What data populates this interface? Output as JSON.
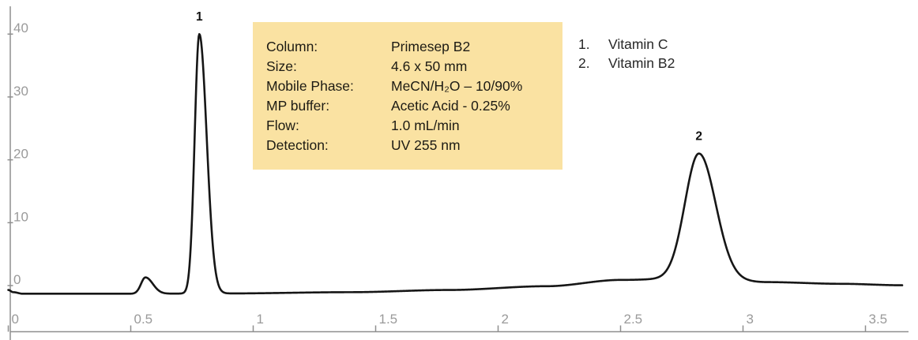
{
  "info_box": {
    "background_color": "#FAE2A2",
    "rows": [
      {
        "label": "Column:",
        "value": "Primesep B2"
      },
      {
        "label": "Size:",
        "value": "4.6 x 50 mm"
      },
      {
        "label": "Mobile Phase:",
        "value": "MeCN/H₂O – 10/90%"
      },
      {
        "label": "MP buffer:",
        "value": "Acetic Acid - 0.25%"
      },
      {
        "label": "Flow:",
        "value": "1.0 mL/min"
      },
      {
        "label": "Detection:",
        "value": "UV 255 nm"
      }
    ]
  },
  "legend": {
    "items": [
      {
        "number": "1.",
        "name": "Vitamin C"
      },
      {
        "number": "2.",
        "name": "Vitamin B2"
      }
    ]
  },
  "chart_data": {
    "type": "line",
    "title": "",
    "xlabel": "",
    "ylabel": "",
    "x_unit": "min",
    "y_unit": "mAU",
    "xlim": [
      0,
      3.7
    ],
    "ylim": [
      -2,
      44
    ],
    "x_ticks": [
      0,
      0.5,
      1,
      1.5,
      2,
      2.5,
      3,
      3.5
    ],
    "y_ticks": [
      0,
      10,
      20,
      30,
      40
    ],
    "grid": false,
    "legend_position": "top-right",
    "trace_color": "#161616",
    "axis_color": "#8f8f8f",
    "tick_label_color": "#9a9a9a",
    "peak_label_color": "#111111",
    "peaks": [
      {
        "label": "1",
        "compound": "Vitamin C",
        "retention_time_min": 0.78,
        "apex_height": 40.0,
        "sigma_left_min": 0.019,
        "sigma_right_min": 0.03
      },
      {
        "label": "2",
        "compound": "Vitamin B2",
        "retention_time_min": 2.82,
        "apex_height": 21.0,
        "sigma_left_min": 0.057,
        "sigma_right_min": 0.068
      },
      {
        "label": "",
        "compound": "minor unlabeled peak",
        "retention_time_min": 0.56,
        "apex_height": 1.3,
        "sigma_left_min": 0.018,
        "sigma_right_min": 0.03
      }
    ],
    "baseline_points": [
      [
        0.0,
        -0.7
      ],
      [
        0.02,
        -1.05
      ],
      [
        0.06,
        -1.3
      ],
      [
        0.5,
        -1.3
      ],
      [
        0.9,
        -1.25
      ],
      [
        1.4,
        -1.05
      ],
      [
        1.8,
        -0.7
      ],
      [
        2.2,
        -0.1
      ],
      [
        2.5,
        0.9
      ],
      [
        2.82,
        1.2
      ],
      [
        3.1,
        0.55
      ],
      [
        3.4,
        0.28
      ],
      [
        3.65,
        0.05
      ]
    ],
    "trace_t_end": 3.65
  }
}
